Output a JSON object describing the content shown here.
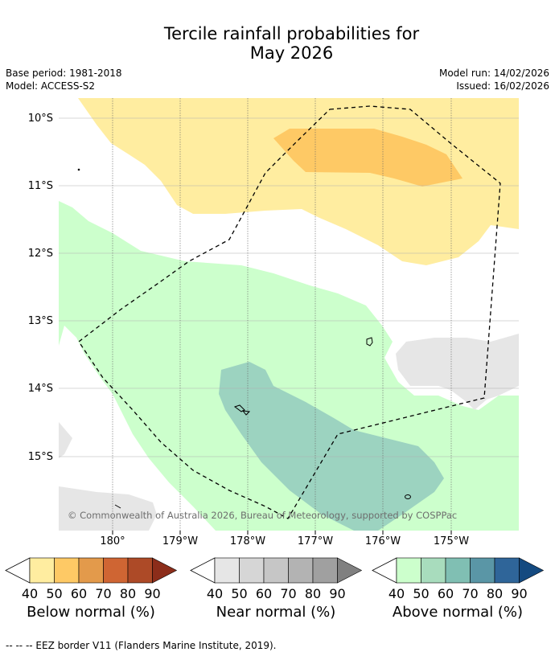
{
  "title": {
    "line1": "Tercile rainfall probabilities for",
    "line2": "May 2026"
  },
  "meta": {
    "base_period": "Base period: 1981-2018",
    "model": "Model: ACCESS-S2",
    "model_run": "Model run: 14/02/2026",
    "issued": "Issued: 16/02/2026"
  },
  "map": {
    "lat_labels": [
      "10°S",
      "11°S",
      "12°S",
      "13°S",
      "14°S",
      "15°S"
    ],
    "lon_labels": [
      "180°",
      "179°W",
      "178°W",
      "177°W",
      "176°W",
      "175°W"
    ],
    "copyright": "© Commonwealth of Australia 2026, Bureau of Meteorology, supported by COSPPac",
    "colors": {
      "below_40": "#ffeda0",
      "below_50": "#fec965",
      "near_40": "#e6e6e6",
      "above_40": "#ccffcc",
      "above_60": "#9cd3c0",
      "eez_line": "#000000"
    }
  },
  "colorbars": [
    {
      "caption": "Below normal (%)",
      "ticks": [
        "40",
        "50",
        "60",
        "70",
        "80",
        "90"
      ],
      "colors": [
        "#ffeda0",
        "#fec965",
        "#e39a4b",
        "#cf6533",
        "#ad4a27",
        "#8c2d1a"
      ]
    },
    {
      "caption": "Near normal (%)",
      "ticks": [
        "40",
        "50",
        "60",
        "70",
        "80",
        "90"
      ],
      "colors": [
        "#e6e6e6",
        "#d6d6d6",
        "#c6c6c6",
        "#b3b3b3",
        "#a0a0a0",
        "#808080"
      ]
    },
    {
      "caption": "Above normal (%)",
      "ticks": [
        "40",
        "50",
        "60",
        "70",
        "80",
        "90"
      ],
      "colors": [
        "#ccffcc",
        "#a8dcbd",
        "#80bfb3",
        "#5a96a6",
        "#2f6599",
        "#144a80"
      ]
    }
  ],
  "footer": "--  --  -- EEZ border V11 (Flanders Marine Institute, 2019)."
}
